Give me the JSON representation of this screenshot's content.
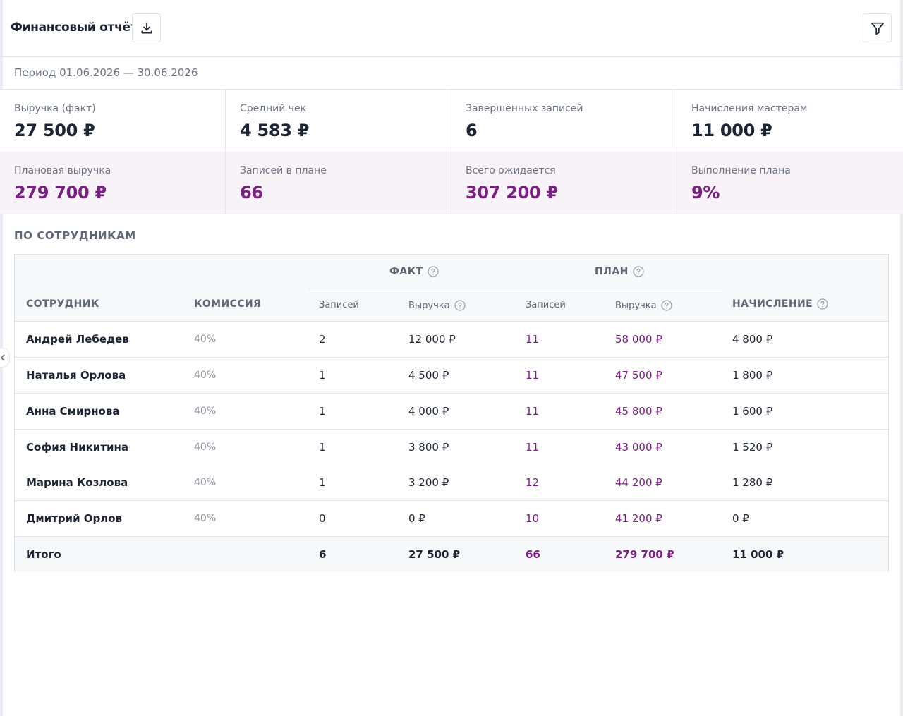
{
  "header": {
    "title": "Финансовый отчёт",
    "download_icon": "download-icon",
    "filter_icon": "filter-icon"
  },
  "period": {
    "text": "Период 01.06.2026 — 30.06.2026"
  },
  "kpis": [
    {
      "label": "Выручка (факт)",
      "value": "27 500 ₽"
    },
    {
      "label": "Средний чек",
      "value": "4 583 ₽"
    },
    {
      "label": "Завершённых записей",
      "value": "6"
    },
    {
      "label": "Начисления мастерам",
      "value": "11 000 ₽"
    }
  ],
  "plan_kpis": [
    {
      "label": "Плановая выручка",
      "value": "279 700 ₽"
    },
    {
      "label": "Записей в плане",
      "value": "66"
    },
    {
      "label": "Всего ожидается",
      "value": "307 200 ₽"
    },
    {
      "label": "Выполнение плана",
      "value": "9%"
    }
  ],
  "section": {
    "title": "ПО СОТРУДНИКАМ"
  },
  "table": {
    "groups": {
      "fact": "ФАКТ",
      "plan": "ПЛАН"
    },
    "columns": {
      "employee": "СОТРУДНИК",
      "commission": "КОМИССИЯ",
      "fact_records": "Записей",
      "fact_revenue": "Выручка",
      "plan_records": "Записей",
      "plan_revenue": "Выручка",
      "accrual": "НАЧИСЛЕНИЕ"
    },
    "rows": [
      {
        "name": "Андрей Лебедев",
        "commission": "40%",
        "fact_records": "2",
        "fact_revenue": "12 000 ₽",
        "plan_records": "11",
        "plan_revenue": "58 000 ₽",
        "accrual": "4 800 ₽"
      },
      {
        "name": "Наталья Орлова",
        "commission": "40%",
        "fact_records": "1",
        "fact_revenue": "4 500 ₽",
        "plan_records": "11",
        "plan_revenue": "47 500 ₽",
        "accrual": "1 800 ₽"
      },
      {
        "name": "Анна Смирнова",
        "commission": "40%",
        "fact_records": "1",
        "fact_revenue": "4 000 ₽",
        "plan_records": "11",
        "plan_revenue": "45 800 ₽",
        "accrual": "1 600 ₽"
      },
      {
        "name": "София Никитина",
        "commission": "40%",
        "fact_records": "1",
        "fact_revenue": "3 800 ₽",
        "plan_records": "11",
        "plan_revenue": "43 000 ₽",
        "accrual": "1 520 ₽"
      },
      {
        "name": "Марина Козлова",
        "commission": "40%",
        "fact_records": "1",
        "fact_revenue": "3 200 ₽",
        "plan_records": "12",
        "plan_revenue": "44 200 ₽",
        "accrual": "1 280 ₽"
      },
      {
        "name": "Дмитрий Орлов",
        "commission": "40%",
        "fact_records": "0",
        "fact_revenue": "0 ₽",
        "plan_records": "10",
        "plan_revenue": "41 200 ₽",
        "accrual": "0 ₽"
      }
    ],
    "total": {
      "name": "Итого",
      "fact_records": "6",
      "fact_revenue": "27 500 ₽",
      "plan_records": "66",
      "plan_revenue": "279 700 ₽",
      "accrual": "11 000 ₽"
    }
  },
  "colors": {
    "accent": "#7a1f82",
    "plan_row_bg": "#f8f2f9",
    "muted_text": "#6b7281",
    "border": "#e3e6ec"
  }
}
